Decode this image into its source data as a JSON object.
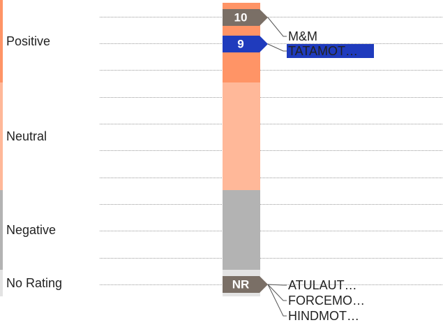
{
  "bands": [
    {
      "label": "Positive",
      "color": "#ff9466"
    },
    {
      "label": "Neutral",
      "color": "#ffb899"
    },
    {
      "label": "Negative",
      "color": "#b3b3b3"
    },
    {
      "label": "No Rating",
      "color": "#e3e3e3"
    }
  ],
  "markers": [
    {
      "label": "10",
      "color": "#7a6f66",
      "items": [
        "M&M"
      ]
    },
    {
      "label": "9",
      "color": "#1f3bbd",
      "selected": true,
      "items": [
        "TATAMOT…"
      ]
    },
    {
      "label": "NR",
      "color": "#7a6f66",
      "items": [
        "ATULAUT…",
        "FORCEMO…",
        "HINDMOT…"
      ]
    }
  ]
}
